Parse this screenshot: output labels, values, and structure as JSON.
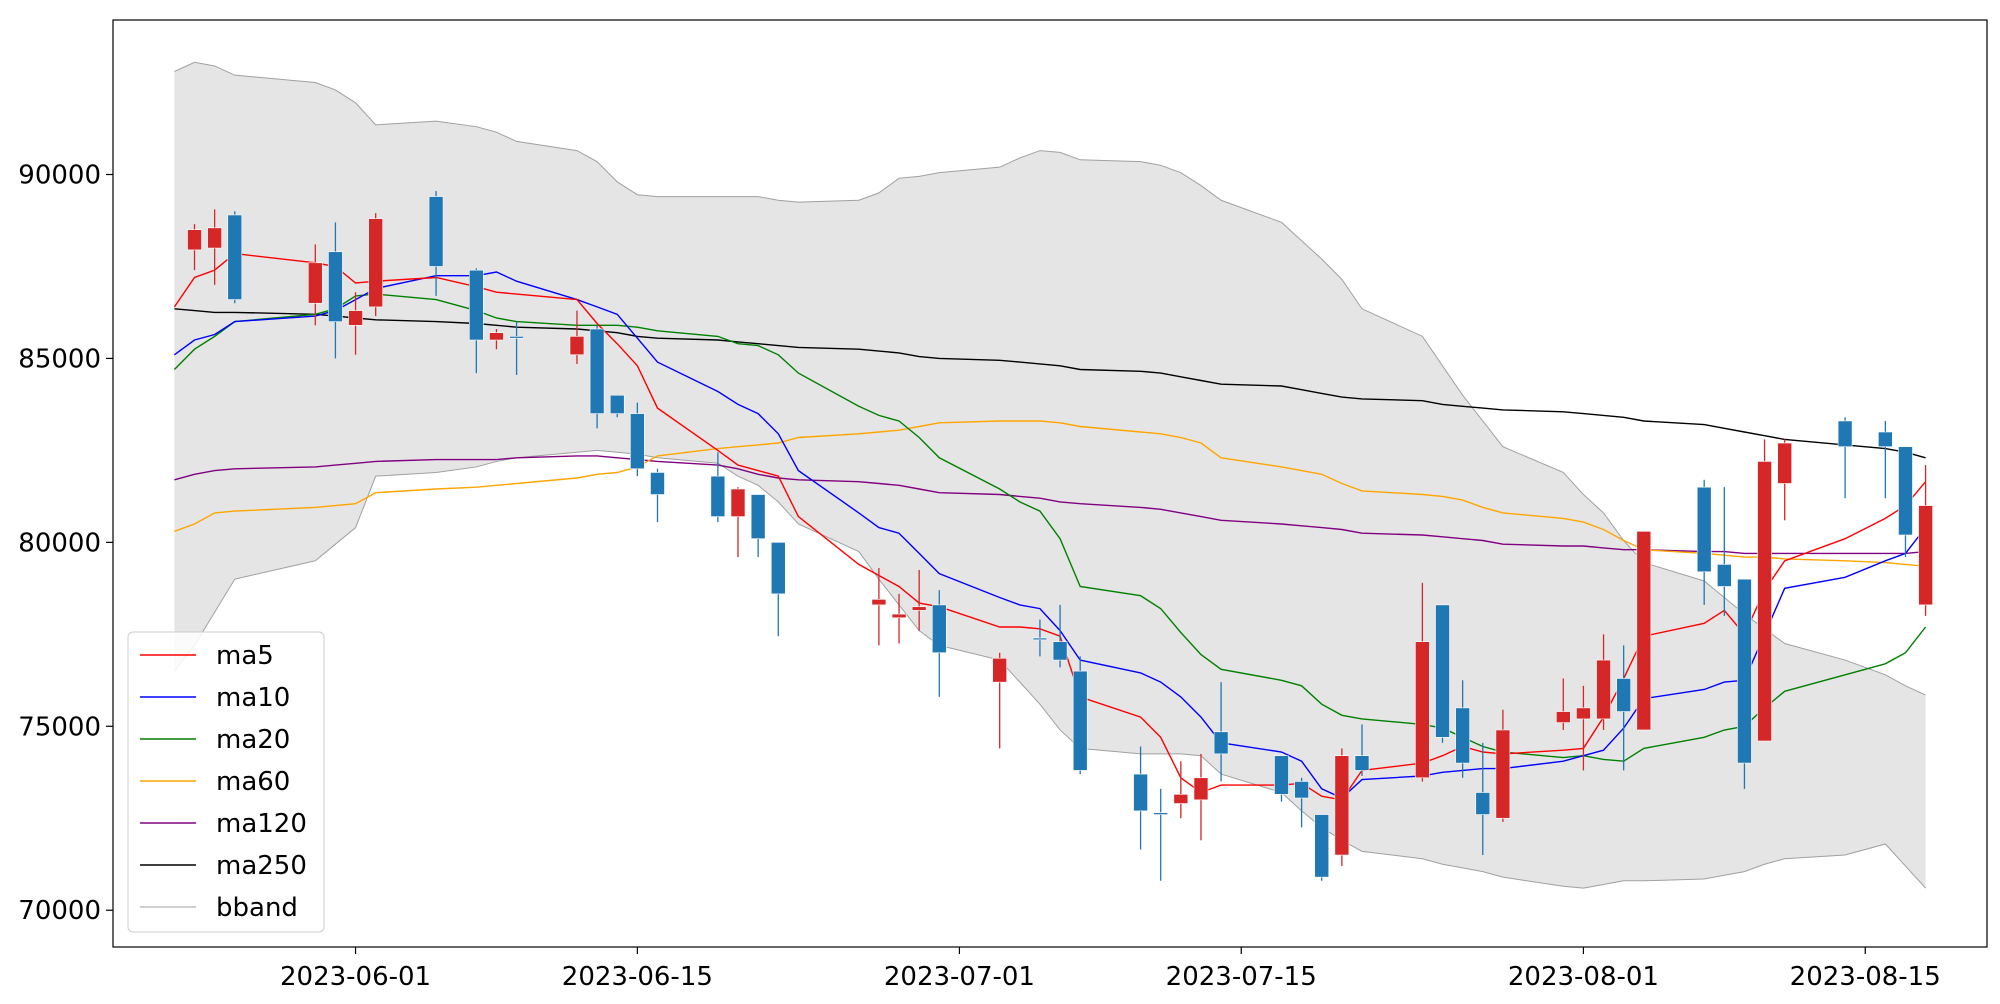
{
  "chart_data": {
    "type": "candlestick",
    "title": "",
    "xlabel": "",
    "ylabel": "",
    "ylim": [
      69000,
      94200
    ],
    "x_ticks": [
      "2023-06-01",
      "2023-06-15",
      "2023-07-01",
      "2023-07-15",
      "2023-08-01",
      "2023-08-15"
    ],
    "y_ticks": [
      "70000",
      "75000",
      "80000",
      "85000",
      "90000"
    ],
    "legend_position": "lower-left",
    "legend": [
      {
        "name": "ma5",
        "color": "#ff0000"
      },
      {
        "name": "ma10",
        "color": "#0000ff"
      },
      {
        "name": "ma20",
        "color": "#008000"
      },
      {
        "name": "ma60",
        "color": "#ffa500"
      },
      {
        "name": "ma120",
        "color": "#800080"
      },
      {
        "name": "ma250",
        "color": "#000000"
      },
      {
        "name": "bband",
        "color": "#a0a0a0"
      }
    ],
    "colors": {
      "up": "#d62728",
      "down": "#1f77b4",
      "band_fill": "#e5e5e5"
    },
    "dates": [
      "2023-05-23",
      "2023-05-24",
      "2023-05-25",
      "2023-05-26",
      "2023-05-30",
      "2023-05-31",
      "2023-06-01",
      "2023-06-02",
      "2023-06-05",
      "2023-06-07",
      "2023-06-08",
      "2023-06-09",
      "2023-06-12",
      "2023-06-13",
      "2023-06-14",
      "2023-06-15",
      "2023-06-16",
      "2023-06-19",
      "2023-06-20",
      "2023-06-21",
      "2023-06-22",
      "2023-06-23",
      "2023-06-26",
      "2023-06-27",
      "2023-06-28",
      "2023-06-29",
      "2023-06-30",
      "2023-07-03",
      "2023-07-04",
      "2023-07-05",
      "2023-07-06",
      "2023-07-07",
      "2023-07-10",
      "2023-07-11",
      "2023-07-12",
      "2023-07-13",
      "2023-07-14",
      "2023-07-17",
      "2023-07-18",
      "2023-07-19",
      "2023-07-20",
      "2023-07-21",
      "2023-07-24",
      "2023-07-25",
      "2023-07-26",
      "2023-07-27",
      "2023-07-28",
      "2023-07-31",
      "2023-08-01",
      "2023-08-02",
      "2023-08-03",
      "2023-08-04",
      "2023-08-07",
      "2023-08-08",
      "2023-08-09",
      "2023-08-10",
      "2023-08-11",
      "2023-08-14",
      "2023-08-16",
      "2023-08-17",
      "2023-08-18"
    ],
    "ohlc": [
      [
        null,
        null,
        null,
        null
      ],
      [
        87950,
        88650,
        87400,
        88500
      ],
      [
        88000,
        89050,
        87000,
        88550
      ],
      [
        88900,
        89000,
        86500,
        86600
      ],
      [
        86500,
        88100,
        85900,
        87600
      ],
      [
        87900,
        88700,
        85000,
        86000
      ],
      [
        85900,
        86800,
        85100,
        86300
      ],
      [
        86400,
        88950,
        86150,
        88800
      ],
      [
        89400,
        89550,
        86700,
        87500
      ],
      [
        87400,
        87450,
        84600,
        85500
      ],
      [
        85500,
        85800,
        85250,
        85700
      ],
      [
        85600,
        86000,
        84550,
        85550
      ],
      [
        85100,
        86300,
        84850,
        85600
      ],
      [
        85800,
        85900,
        83100,
        83500
      ],
      [
        84000,
        84000,
        83400,
        83500
      ],
      [
        83500,
        83800,
        81800,
        82000
      ],
      [
        81900,
        82000,
        80550,
        81300
      ],
      [
        81800,
        82450,
        80550,
        80700
      ],
      [
        80700,
        81500,
        79600,
        81450
      ],
      [
        81300,
        81300,
        79600,
        80100
      ],
      [
        80000,
        80000,
        77450,
        78600
      ],
      [
        null,
        null,
        null,
        null
      ],
      [
        null,
        null,
        null,
        null
      ],
      [
        78300,
        79300,
        77200,
        78450
      ],
      [
        77950,
        78600,
        77250,
        78050
      ],
      [
        78150,
        79250,
        77600,
        78250
      ],
      [
        78300,
        78700,
        75800,
        77000
      ],
      [
        76200,
        77000,
        74400,
        76850
      ],
      [
        null,
        null,
        null,
        null
      ],
      [
        77400,
        77900,
        76900,
        77350
      ],
      [
        77300,
        78300,
        76600,
        76800
      ],
      [
        76500,
        76900,
        73700,
        73800
      ],
      [
        73700,
        74450,
        71650,
        72700
      ],
      [
        72650,
        73300,
        70800,
        72600
      ],
      [
        72900,
        74050,
        72500,
        73150
      ],
      [
        73000,
        74250,
        71900,
        73600
      ],
      [
        74850,
        76200,
        73500,
        74250
      ],
      [
        74200,
        74200,
        72950,
        73150
      ],
      [
        73500,
        73600,
        72250,
        73050
      ],
      [
        72600,
        72600,
        70800,
        70900
      ],
      [
        71500,
        74400,
        71200,
        74200
      ],
      [
        74200,
        75050,
        73650,
        73800
      ],
      [
        73600,
        78900,
        73500,
        77300
      ],
      [
        78300,
        78300,
        74550,
        74700
      ],
      [
        75500,
        76250,
        73600,
        74000
      ],
      [
        73200,
        74550,
        71500,
        72600
      ],
      [
        72500,
        75450,
        72400,
        74900
      ],
      [
        75100,
        76300,
        74900,
        75400
      ],
      [
        75200,
        76100,
        73800,
        75500
      ],
      [
        75200,
        77500,
        74900,
        76800
      ],
      [
        76300,
        77200,
        73800,
        75400
      ],
      [
        74900,
        80300,
        74900,
        80300
      ],
      [
        81500,
        81700,
        78300,
        79200
      ],
      [
        79400,
        81500,
        78000,
        78800
      ],
      [
        79000,
        79000,
        73300,
        74000
      ],
      [
        74600,
        82800,
        74600,
        82200
      ],
      [
        81600,
        82800,
        80600,
        82700
      ],
      [
        83300,
        83400,
        81200,
        82600
      ],
      [
        83000,
        83300,
        81200,
        82600
      ],
      [
        82600,
        82600,
        79600,
        80200
      ],
      [
        78300,
        82100,
        78000,
        81000
      ]
    ],
    "ma5": [
      86400,
      87200,
      87400,
      87850,
      87600,
      87500,
      87050,
      87100,
      87200,
      86950,
      86800,
      86750,
      86600,
      85950,
      85400,
      84800,
      83650,
      82500,
      82100,
      81950,
      81800,
      80700,
      79400,
      79100,
      78800,
      78350,
      78250,
      77700,
      77700,
      77650,
      77450,
      75800,
      75250,
      74700,
      73600,
      73200,
      73400,
      73400,
      73450,
      73100,
      73000,
      73800,
      74000,
      74200,
      74450,
      74300,
      74250,
      74350,
      74400,
      75250,
      76300,
      77450,
      77800,
      78150,
      77500,
      78700,
      79500,
      80100,
      80650,
      81000,
      81650
    ],
    "ma10": [
      85100,
      85500,
      85650,
      86000,
      86150,
      86300,
      86600,
      86900,
      87250,
      87250,
      87350,
      87100,
      86600,
      86400,
      86200,
      85550,
      84900,
      84100,
      83750,
      83500,
      82950,
      81950,
      80800,
      80400,
      80250,
      79700,
      79150,
      78500,
      78300,
      78200,
      77600,
      76800,
      76450,
      76200,
      75800,
      75250,
      74550,
      74300,
      74050,
      73300,
      73050,
      73550,
      73650,
      73750,
      73800,
      73850,
      73850,
      74050,
      74200,
      74350,
      74950,
      75750,
      76000,
      76200,
      76250,
      77500,
      78750,
      79050,
      79500,
      79700,
      80400
    ],
    "ma20": [
      84700,
      85250,
      85600,
      86000,
      86200,
      86350,
      86700,
      86750,
      86600,
      86300,
      86100,
      86000,
      85900,
      85900,
      85900,
      85850,
      85750,
      85600,
      85400,
      85350,
      85100,
      84600,
      83700,
      83450,
      83300,
      82850,
      82300,
      81450,
      81100,
      80850,
      80100,
      78800,
      78550,
      78200,
      77550,
      76950,
      76550,
      76250,
      76100,
      75600,
      75300,
      75200,
      75050,
      74950,
      74700,
      74450,
      74300,
      74150,
      74200,
      74100,
      74050,
      74400,
      74700,
      74900,
      75000,
      75500,
      75950,
      76400,
      76700,
      77000,
      77700
    ],
    "ma60": [
      80300,
      80500,
      80800,
      80850,
      80950,
      81000,
      81050,
      81350,
      81450,
      81500,
      81550,
      81600,
      81750,
      81850,
      81900,
      82050,
      82350,
      82550,
      82600,
      82650,
      82700,
      82850,
      82950,
      83000,
      83050,
      83150,
      83250,
      83300,
      83300,
      83300,
      83250,
      83150,
      83000,
      82950,
      82850,
      82700,
      82300,
      82050,
      81950,
      81850,
      81600,
      81400,
      81300,
      81250,
      81150,
      80950,
      80800,
      80650,
      80550,
      80350,
      80050,
      79800,
      79700,
      79650,
      79600,
      79600,
      79550,
      79500,
      79450,
      79400,
      79350
    ],
    "ma120": [
      81700,
      81850,
      81950,
      82000,
      82050,
      82100,
      82150,
      82200,
      82250,
      82250,
      82250,
      82300,
      82350,
      82350,
      82300,
      82250,
      82200,
      82100,
      82000,
      81850,
      81750,
      81700,
      81650,
      81600,
      81550,
      81450,
      81350,
      81300,
      81250,
      81200,
      81100,
      81050,
      80950,
      80900,
      80800,
      80700,
      80600,
      80500,
      80450,
      80400,
      80350,
      80250,
      80200,
      80150,
      80100,
      80050,
      79950,
      79900,
      79900,
      79850,
      79800,
      79800,
      79750,
      79750,
      79700,
      79700,
      79700,
      79700,
      79700,
      79700,
      79750
    ],
    "ma250": [
      86350,
      86300,
      86250,
      86250,
      86200,
      86150,
      86100,
      86050,
      86000,
      85950,
      85900,
      85850,
      85800,
      85750,
      85700,
      85600,
      85550,
      85500,
      85450,
      85400,
      85350,
      85300,
      85250,
      85200,
      85150,
      85050,
      85000,
      84950,
      84900,
      84850,
      84800,
      84700,
      84650,
      84600,
      84500,
      84400,
      84300,
      84250,
      84150,
      84050,
      83950,
      83900,
      83850,
      83750,
      83700,
      83650,
      83600,
      83550,
      83500,
      83450,
      83400,
      83300,
      83200,
      83100,
      83000,
      82900,
      82800,
      82650,
      82550,
      82450,
      82300
    ],
    "bband_upper": [
      92800,
      93050,
      92950,
      92700,
      92500,
      92300,
      91950,
      91350,
      91450,
      91300,
      91150,
      90900,
      90650,
      90350,
      89800,
      89450,
      89400,
      89400,
      89400,
      89400,
      89300,
      89250,
      89300,
      89500,
      89900,
      89950,
      90050,
      90200,
      90450,
      90650,
      90600,
      90400,
      90350,
      90250,
      90050,
      89700,
      89300,
      88700,
      88200,
      87700,
      87150,
      86350,
      85600,
      84800,
      84000,
      83300,
      82600,
      81900,
      81300,
      80800,
      80050,
      79450,
      78950,
      78500,
      78050,
      77650,
      77250,
      76800,
      76400,
      76100,
      75850
    ],
    "bband_lower": [
      76500,
      77200,
      78100,
      79000,
      79500,
      79950,
      80400,
      81800,
      81900,
      82050,
      82200,
      82300,
      82450,
      82500,
      82450,
      82400,
      82300,
      82150,
      81800,
      81550,
      81100,
      80500,
      79750,
      79000,
      78300,
      77600,
      77200,
      76800,
      76200,
      75600,
      74900,
      74400,
      74250,
      74250,
      74250,
      74200,
      73700,
      73200,
      72700,
      72250,
      71900,
      71600,
      71400,
      71250,
      71150,
      71050,
      70900,
      70650,
      70600,
      70700,
      70800,
      70800,
      70850,
      70950,
      71050,
      71250,
      71400,
      71500,
      71800,
      71200,
      70600
    ]
  }
}
